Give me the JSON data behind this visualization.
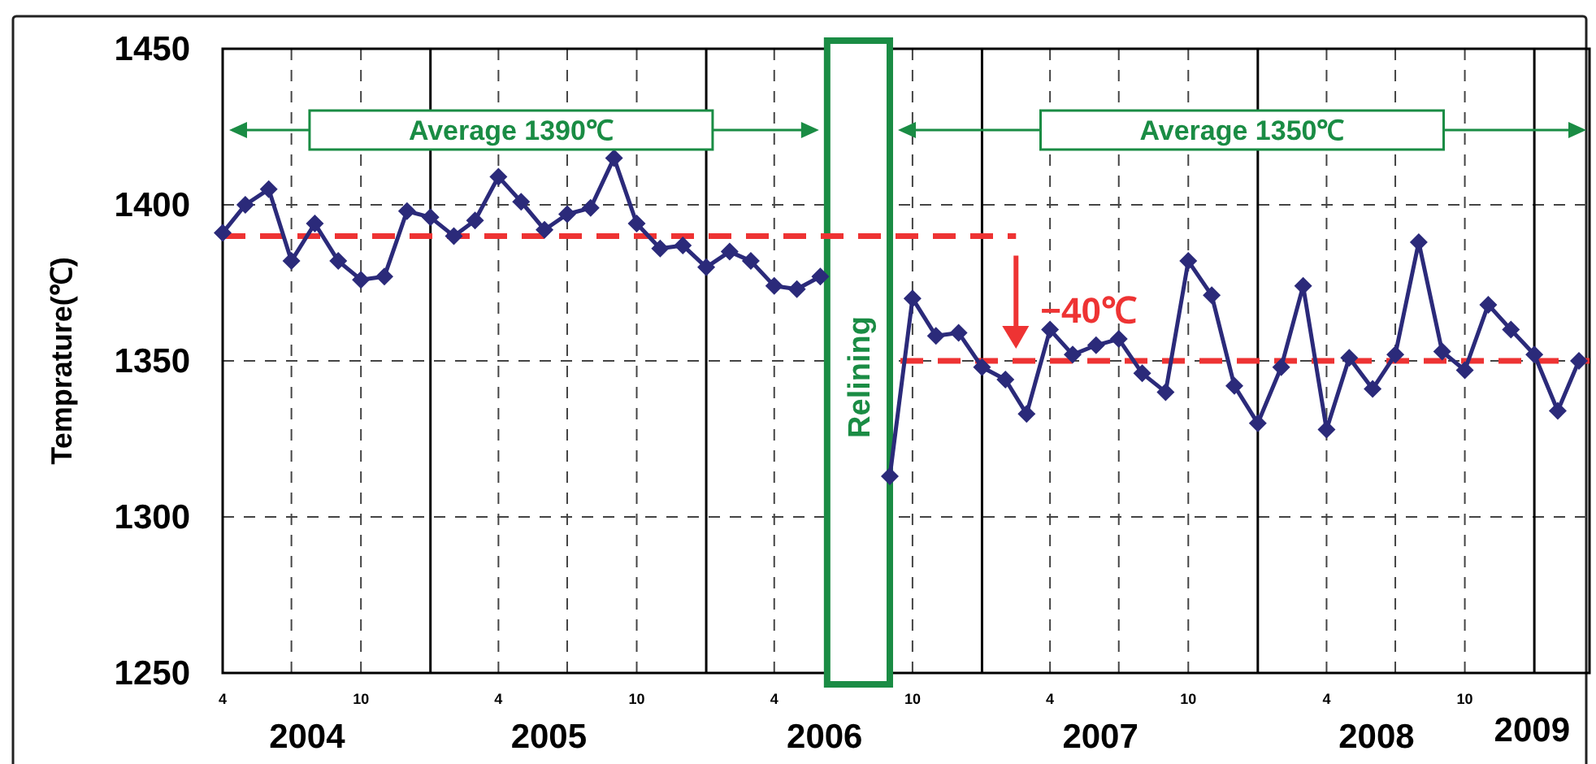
{
  "chart_data": {
    "type": "line",
    "ylabel": "Temprature(℃)",
    "x": [
      "2004-04",
      "2004-05",
      "2004-06",
      "2004-07",
      "2004-08",
      "2004-09",
      "2004-10",
      "2004-11",
      "2004-12",
      "2005-01",
      "2005-02",
      "2005-03",
      "2005-04",
      "2005-05",
      "2005-06",
      "2005-07",
      "2005-08",
      "2005-09",
      "2005-10",
      "2005-11",
      "2005-12",
      "2006-01",
      "2006-02",
      "2006-03",
      "2006-04",
      "2006-05",
      "2006-06",
      "2006-07",
      "2006-08",
      "2006-09",
      "2006-10",
      "2006-11",
      "2006-12",
      "2007-01",
      "2007-02",
      "2007-03",
      "2007-04",
      "2007-05",
      "2007-06",
      "2007-07",
      "2007-08",
      "2007-09",
      "2007-10",
      "2007-11",
      "2007-12",
      "2008-01",
      "2008-02",
      "2008-03",
      "2008-04",
      "2008-05",
      "2008-06",
      "2008-07",
      "2008-08",
      "2008-09",
      "2008-10",
      "2008-11",
      "2008-12",
      "2009-01",
      "2009-02",
      "2009-03"
    ],
    "series": [
      {
        "color": "#2b2a7a",
        "values": [
          1391,
          1400,
          1405,
          1382,
          1394,
          1382,
          1376,
          1377,
          1398,
          1396,
          1390,
          1395,
          1409,
          1401,
          1392,
          1397,
          1399,
          1415,
          1394,
          1386,
          1387,
          1380,
          1385,
          1382,
          1374,
          1373,
          1377,
          null,
          null,
          1313,
          1370,
          1358,
          1359,
          1348,
          1344,
          1333,
          1360,
          1352,
          1355,
          1357,
          1346,
          1340,
          1382,
          1371,
          1342,
          1330,
          1348,
          1374,
          1328,
          1351,
          1341,
          1352,
          1388,
          1353,
          1347,
          1368,
          1360,
          1352,
          1334,
          1350
        ]
      },
      {
        "type": "line",
        "x": [
          "2004-04",
          "2007-02-15"
        ],
        "values": [
          1390,
          1390
        ],
        "color": "#ee3333",
        "line_style": "dashed",
        "marker": "none"
      },
      {
        "type": "line",
        "x": [
          "2006-09-15",
          "2009-03-15"
        ],
        "values": [
          1350,
          1350
        ],
        "color": "#ee3333",
        "line_style": "dashed",
        "marker": "none"
      }
    ],
    "xlim": [
      "2004-04",
      "2009-03-15"
    ],
    "xticks": [
      {
        "value": "2004-04",
        "label": "4"
      },
      {
        "value": "2004-07",
        "label": null
      },
      {
        "value": "2004-10",
        "label": "10"
      },
      {
        "value": "2005-04",
        "label": "4"
      },
      {
        "value": "2005-07",
        "label": null
      },
      {
        "value": "2005-10",
        "label": "10"
      },
      {
        "value": "2006-04",
        "label": "4"
      },
      {
        "value": "2006-10",
        "label": "10"
      },
      {
        "value": "2007-04",
        "label": "4"
      },
      {
        "value": "2007-07",
        "label": null
      },
      {
        "value": "2007-10",
        "label": "10"
      },
      {
        "value": "2008-04",
        "label": "4"
      },
      {
        "value": "2008-07",
        "label": null
      },
      {
        "value": "2008-10",
        "label": "10"
      }
    ],
    "ylim": [
      1250,
      1450
    ],
    "yticks": [
      1250,
      1300,
      1350,
      1400,
      1450
    ],
    "grid": true,
    "marker": "diamond",
    "line_style": "solid",
    "ref_lines": [
      {
        "axis": "x",
        "value": "2005-01",
        "color": "#000000",
        "line_style": "solid"
      },
      {
        "axis": "x",
        "value": "2006-01",
        "color": "#000000",
        "line_style": "solid"
      },
      {
        "axis": "x",
        "value": "2007-01",
        "color": "#000000",
        "line_style": "solid"
      },
      {
        "axis": "x",
        "value": "2008-01",
        "color": "#000000",
        "line_style": "solid"
      },
      {
        "axis": "x",
        "value": "2009-01",
        "color": "#000000",
        "line_style": "solid"
      }
    ],
    "bands": [
      {
        "axis": "x",
        "from": "2006-06-10",
        "to": "2006-09",
        "label": "Relining",
        "color": "#1a8c44"
      }
    ],
    "annotations": [
      "Average 1390℃",
      "Average 1350℃",
      "−40℃",
      "2004",
      "2005",
      "2006",
      "2007",
      "2008",
      "2009"
    ]
  }
}
